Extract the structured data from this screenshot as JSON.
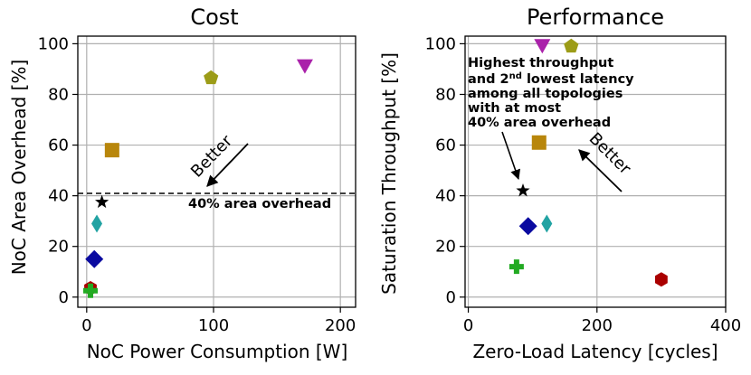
{
  "chart_data": [
    {
      "type": "scatter",
      "title": "Cost",
      "xlabel": "NoC Power Consumption [W]",
      "ylabel": "NoC Area Overhead [%]",
      "xlim": [
        -7,
        212
      ],
      "ylim": [
        -4,
        103
      ],
      "xticks": [
        0,
        100,
        200
      ],
      "yticks": [
        0,
        20,
        40,
        60,
        80,
        100
      ],
      "grid": true,
      "threshold": {
        "y": 40,
        "label": "40% area overhead"
      },
      "better_label": "Better",
      "points": [
        {
          "marker": "hexagon",
          "color": "#aa0000",
          "x": 3,
          "y": 3.5
        },
        {
          "marker": "plus",
          "color": "#22aa22",
          "x": 3,
          "y": 2.5
        },
        {
          "marker": "diamond",
          "color": "#0a0aa0",
          "x": 6,
          "y": 15
        },
        {
          "marker": "thin-diamond",
          "color": "#22a3a3",
          "x": 8,
          "y": 29
        },
        {
          "marker": "star",
          "color": "#000000",
          "x": 12,
          "y": 37.5
        },
        {
          "marker": "square",
          "color": "#b8860b",
          "x": 20,
          "y": 58
        },
        {
          "marker": "pentagon",
          "color": "#9c9c18",
          "x": 98,
          "y": 86.5
        },
        {
          "marker": "triangle-down",
          "color": "#aa22aa",
          "x": 172,
          "y": 91
        }
      ]
    },
    {
      "type": "scatter",
      "title": "Performance",
      "xlabel": "Zero-Load Latency [cycles]",
      "ylabel": "Saturation Throughput [%]",
      "xlim": [
        -5,
        400
      ],
      "ylim": [
        -4,
        103
      ],
      "xticks": [
        0,
        200,
        400
      ],
      "yticks": [
        0,
        20,
        40,
        60,
        80,
        100
      ],
      "grid": true,
      "better_label": "Better",
      "annotation": {
        "line1": "Highest throughput",
        "line2_pre": "and 2",
        "line2_sup": "nd",
        "line2_post": " lowest latency",
        "line3": "among all topologies",
        "line4": "with at most",
        "line5": "40% area overhead"
      },
      "points": [
        {
          "marker": "plus",
          "color": "#22aa22",
          "x": 75,
          "y": 12
        },
        {
          "marker": "star",
          "color": "#000000",
          "x": 85,
          "y": 42
        },
        {
          "marker": "diamond",
          "color": "#0a0aa0",
          "x": 93,
          "y": 28
        },
        {
          "marker": "square",
          "color": "#b8860b",
          "x": 110,
          "y": 61
        },
        {
          "marker": "triangle-down",
          "color": "#aa22aa",
          "x": 115,
          "y": 99
        },
        {
          "marker": "thin-diamond",
          "color": "#22a3a3",
          "x": 122,
          "y": 29
        },
        {
          "marker": "pentagon",
          "color": "#9c9c18",
          "x": 160,
          "y": 99
        },
        {
          "marker": "hexagon",
          "color": "#aa0000",
          "x": 300,
          "y": 7
        }
      ]
    }
  ]
}
